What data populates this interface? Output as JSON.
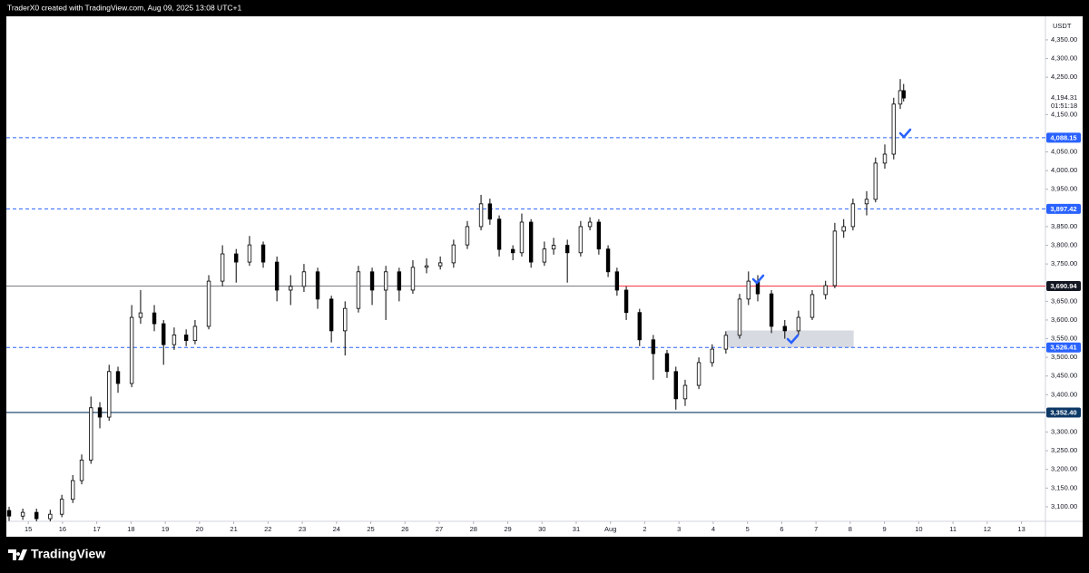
{
  "header": "TraderX0 created with TradingView.com, Aug 09, 2025 13:08 UTC+1",
  "footer": {
    "brand": "TradingView"
  },
  "chart_data": {
    "type": "candlestick",
    "currency": "USDT",
    "up_color": "#ffffff",
    "down_color": "#000000",
    "wick_color": "#000000",
    "xlim": [
      -0.64,
      29.7
    ],
    "ylim": [
      3061,
      4413
    ],
    "xticks": [
      {
        "value": 0,
        "label": "15"
      },
      {
        "value": 1,
        "label": "16"
      },
      {
        "value": 2,
        "label": "17"
      },
      {
        "value": 3,
        "label": "18"
      },
      {
        "value": 4,
        "label": "19"
      },
      {
        "value": 5,
        "label": "20"
      },
      {
        "value": 6,
        "label": "21"
      },
      {
        "value": 7,
        "label": "22"
      },
      {
        "value": 8,
        "label": "23"
      },
      {
        "value": 9,
        "label": "24"
      },
      {
        "value": 10,
        "label": "25"
      },
      {
        "value": 11,
        "label": "26"
      },
      {
        "value": 12,
        "label": "27"
      },
      {
        "value": 13,
        "label": "28"
      },
      {
        "value": 14,
        "label": "29"
      },
      {
        "value": 15,
        "label": "30"
      },
      {
        "value": 16,
        "label": "31"
      },
      {
        "value": 17,
        "label": "Aug"
      },
      {
        "value": 18,
        "label": "2"
      },
      {
        "value": 19,
        "label": "3"
      },
      {
        "value": 20,
        "label": "4"
      },
      {
        "value": 21,
        "label": "5"
      },
      {
        "value": 22,
        "label": "6"
      },
      {
        "value": 23,
        "label": "7"
      },
      {
        "value": 24,
        "label": "8"
      },
      {
        "value": 25,
        "label": "9"
      },
      {
        "value": 26,
        "label": "10"
      },
      {
        "value": 27,
        "label": "11"
      },
      {
        "value": 28,
        "label": "12"
      },
      {
        "value": 29,
        "label": "13"
      }
    ],
    "yticks": [
      {
        "value": 4350,
        "label": "4,350.00"
      },
      {
        "value": 4300,
        "label": "4,300.00"
      },
      {
        "value": 4250,
        "label": "4,250.00"
      },
      {
        "value": 4150,
        "label": "4,150.00"
      },
      {
        "value": 4050,
        "label": "4,050.00"
      },
      {
        "value": 4000,
        "label": "4,000.00"
      },
      {
        "value": 3950,
        "label": "3,950.00"
      },
      {
        "value": 3850,
        "label": "3,850.00"
      },
      {
        "value": 3800,
        "label": "3,800.00"
      },
      {
        "value": 3750,
        "label": "3,750.00"
      },
      {
        "value": 3650,
        "label": "3,650.00"
      },
      {
        "value": 3600,
        "label": "3,600.00"
      },
      {
        "value": 3550,
        "label": "3,550.00"
      },
      {
        "value": 3500,
        "label": "3,500.00"
      },
      {
        "value": 3450,
        "label": "3,450.00"
      },
      {
        "value": 3400,
        "label": "3,400.00"
      },
      {
        "value": 3300,
        "label": "3,300.00"
      },
      {
        "value": 3250,
        "label": "3,250.00"
      },
      {
        "value": 3200,
        "label": "3,200.00"
      },
      {
        "value": 3150,
        "label": "3,150.00"
      },
      {
        "value": 3100,
        "label": "3,100.00"
      }
    ],
    "x": [
      -0.56,
      -0.16,
      0.24,
      0.64,
      0.98,
      1.3,
      1.56,
      1.83,
      2.09,
      2.36,
      2.62,
      3.02,
      3.28,
      3.68,
      3.95,
      4.26,
      4.61,
      4.87,
      5.27,
      5.67,
      6.07,
      6.46,
      6.86,
      7.26,
      7.66,
      8.05,
      8.45,
      8.85,
      9.25,
      9.64,
      10.04,
      10.44,
      10.83,
      11.23,
      11.63,
      12.03,
      12.42,
      12.82,
      13.22,
      13.48,
      13.75,
      14.15,
      14.41,
      14.68,
      15.07,
      15.34,
      15.74,
      16.13,
      16.4,
      16.66,
      16.93,
      17.19,
      17.46,
      17.85,
      18.25,
      18.65,
      18.91,
      19.18,
      19.58,
      19.97,
      20.37,
      20.77,
      21.03,
      21.3,
      21.7,
      22.09,
      22.49,
      22.89,
      23.28,
      23.55,
      23.81,
      24.08,
      24.48,
      24.74,
      25.01,
      25.27,
      25.46,
      25.56
    ],
    "open": [
      3090,
      3075,
      3085,
      3068,
      3080,
      3120,
      3170,
      3225,
      3365,
      3340,
      3462,
      3430,
      3607,
      3619,
      3590,
      3534,
      3560,
      3545,
      3583,
      3704,
      3777,
      3755,
      3801,
      3755,
      3680,
      3690,
      3729,
      3656,
      3571,
      3631,
      3729,
      3680,
      3729,
      3680,
      3741,
      3745,
      3753,
      3801,
      3850,
      3911,
      3870,
      3789,
      3780,
      3862,
      3755,
      3790,
      3800,
      3780,
      3850,
      3862,
      3790,
      3729,
      3680,
      3620,
      3547,
      3510,
      3462,
      3389,
      3425,
      3486,
      3522,
      3559,
      3656,
      3704,
      3670,
      3583,
      3571,
      3607,
      3668,
      3692,
      3838,
      3850,
      3911,
      3923,
      4020,
      4044,
      4178,
      4214
    ],
    "high": [
      3100,
      3095,
      3095,
      3092,
      3132,
      3185,
      3240,
      3395,
      3380,
      3480,
      3475,
      3640,
      3680,
      3640,
      3600,
      3580,
      3575,
      3600,
      3720,
      3800,
      3790,
      3825,
      3810,
      3770,
      3720,
      3750,
      3740,
      3665,
      3650,
      3745,
      3740,
      3745,
      3740,
      3760,
      3765,
      3770,
      3815,
      3865,
      3935,
      3925,
      3880,
      3800,
      3885,
      3870,
      3810,
      3820,
      3815,
      3865,
      3875,
      3870,
      3800,
      3740,
      3690,
      3630,
      3560,
      3520,
      3475,
      3440,
      3500,
      3535,
      3570,
      3670,
      3730,
      3720,
      3680,
      3600,
      3625,
      3680,
      3705,
      3860,
      3870,
      3925,
      3945,
      4035,
      4070,
      4195,
      4245,
      4232
    ],
    "low": [
      3062,
      3065,
      3058,
      3060,
      3072,
      3110,
      3160,
      3215,
      3310,
      3330,
      3405,
      3420,
      3590,
      3570,
      3480,
      3520,
      3530,
      3535,
      3575,
      3690,
      3700,
      3745,
      3740,
      3650,
      3640,
      3675,
      3630,
      3540,
      3505,
      3620,
      3640,
      3600,
      3650,
      3670,
      3725,
      3735,
      3740,
      3790,
      3840,
      3855,
      3770,
      3760,
      3770,
      3740,
      3745,
      3775,
      3700,
      3770,
      3840,
      3775,
      3715,
      3665,
      3600,
      3530,
      3440,
      3445,
      3360,
      3370,
      3415,
      3475,
      3510,
      3550,
      3640,
      3650,
      3565,
      3550,
      3560,
      3600,
      3655,
      3685,
      3820,
      3840,
      3880,
      3915,
      4005,
      4030,
      4165,
      4185
    ],
    "close": [
      3075,
      3085,
      3068,
      3080,
      3120,
      3170,
      3225,
      3365,
      3340,
      3462,
      3430,
      3607,
      3619,
      3590,
      3534,
      3560,
      3545,
      3583,
      3704,
      3777,
      3755,
      3801,
      3755,
      3680,
      3690,
      3729,
      3656,
      3571,
      3631,
      3729,
      3680,
      3729,
      3680,
      3741,
      3745,
      3753,
      3801,
      3850,
      3911,
      3870,
      3789,
      3780,
      3862,
      3755,
      3790,
      3800,
      3780,
      3850,
      3862,
      3790,
      3729,
      3680,
      3620,
      3547,
      3510,
      3462,
      3389,
      3425,
      3486,
      3522,
      3559,
      3656,
      3704,
      3670,
      3583,
      3571,
      3607,
      3668,
      3692,
      3838,
      3850,
      3911,
      3923,
      4020,
      4044,
      4178,
      4214,
      4194.31
    ],
    "last_price": {
      "value": 4194.31,
      "label": "4,194.31"
    },
    "countdown": "01:51:18",
    "levels": [
      {
        "price": {
          "value": 4088.15,
          "label": "4,088.15"
        },
        "color": "#2962ff",
        "label_color": "#2962ff",
        "dashed": true
      },
      {
        "price": {
          "value": 3897.42,
          "label": "3,897.42"
        },
        "color": "#2962ff",
        "label_color": "#2962ff",
        "dashed": true
      },
      {
        "price": {
          "value": 3690.94,
          "label": "3,690.94"
        },
        "color": "#787b86",
        "label_color": "#131722",
        "dashed": false,
        "highlight_from": 17.2,
        "highlight_color": "#f23645"
      },
      {
        "price": {
          "value": 3526.41,
          "label": "3,526.41"
        },
        "color": "#2962ff",
        "label_color": "#2962ff",
        "dashed": true
      },
      {
        "price": {
          "value": 3352.4,
          "label": "3,352.40"
        },
        "color": "#0c3866",
        "label_color": "#0c3866",
        "dashed": false
      }
    ],
    "zone": {
      "x": [
        20.4,
        24.1
      ],
      "y": [
        3526,
        3572
      ],
      "color": "#d1d4dc"
    }
  }
}
